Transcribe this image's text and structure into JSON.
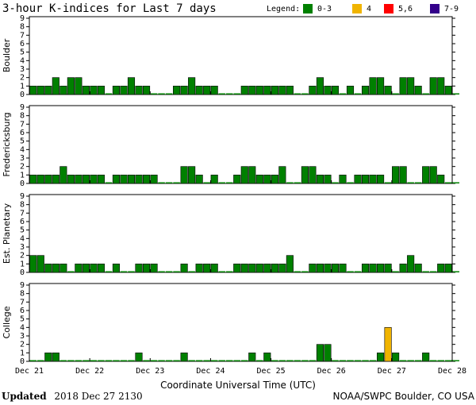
{
  "title": "3-hour K-indices for Last 7 days",
  "legend": {
    "label": "Legend:",
    "items": [
      {
        "label": "0-3",
        "color": "#008000"
      },
      {
        "label": "4",
        "color": "#f0b400"
      },
      {
        "label": "5,6",
        "color": "#ff0000"
      },
      {
        "label": "7-9",
        "color": "#33008a"
      }
    ]
  },
  "footer": {
    "updated_label": "Updated",
    "updated_value": "2018 Dec 27 2130",
    "source": "NOAA/SWPC Boulder, CO USA"
  },
  "chart_data": {
    "type": "bar",
    "xlabel": "Coordinate Universal Time (UTC)",
    "x_ticks": [
      "Dec 21",
      "Dec 22",
      "Dec 23",
      "Dec 24",
      "Dec 25",
      "Dec 26",
      "Dec 27",
      "Dec 28"
    ],
    "ylim": [
      0,
      9
    ],
    "y_ticks": [
      "0",
      "1",
      "2",
      "3",
      "4",
      "5",
      "6",
      "7",
      "8",
      "9"
    ],
    "panels": [
      {
        "name": "Boulder",
        "values": [
          1,
          1,
          1,
          2,
          1,
          2,
          2,
          1,
          1,
          1,
          0,
          1,
          1,
          2,
          1,
          1,
          0,
          0,
          0,
          1,
          1,
          2,
          1,
          1,
          1,
          0,
          0,
          0,
          1,
          1,
          1,
          1,
          1,
          1,
          1,
          0,
          0,
          1,
          2,
          1,
          1,
          0,
          1,
          0,
          1,
          2,
          2,
          1,
          0,
          2,
          2,
          1,
          0,
          2,
          2,
          1,
          0
        ]
      },
      {
        "name": "Fredericksburg",
        "values": [
          1,
          1,
          1,
          1,
          2,
          1,
          1,
          1,
          1,
          1,
          0,
          1,
          1,
          1,
          1,
          1,
          1,
          0,
          0,
          0,
          2,
          2,
          1,
          0,
          1,
          0,
          0,
          1,
          2,
          2,
          1,
          1,
          1,
          2,
          0,
          0,
          2,
          2,
          1,
          1,
          0,
          1,
          0,
          1,
          1,
          1,
          1,
          0,
          2,
          2,
          0,
          0,
          2,
          2,
          1,
          0,
          0
        ]
      },
      {
        "name": "Est. Planetary",
        "values": [
          2,
          2,
          1,
          1,
          1,
          0,
          1,
          1,
          1,
          1,
          0,
          1,
          0,
          0,
          1,
          1,
          1,
          0,
          0,
          0,
          1,
          0,
          1,
          1,
          1,
          0,
          0,
          1,
          1,
          1,
          1,
          1,
          1,
          1,
          2,
          0,
          0,
          1,
          1,
          1,
          1,
          1,
          0,
          0,
          1,
          1,
          1,
          1,
          0,
          1,
          2,
          1,
          0,
          0,
          1,
          1,
          0
        ]
      },
      {
        "name": "College",
        "values": [
          0,
          0,
          1,
          1,
          0,
          0,
          0,
          0,
          0,
          0,
          0,
          0,
          0,
          0,
          1,
          0,
          0,
          0,
          0,
          0,
          1,
          0,
          0,
          0,
          0,
          0,
          0,
          0,
          0,
          1,
          0,
          1,
          0,
          0,
          0,
          0,
          0,
          0,
          2,
          2,
          0,
          0,
          0,
          0,
          0,
          0,
          1,
          4,
          1,
          0,
          0,
          0,
          1,
          0,
          0,
          0,
          0
        ]
      }
    ]
  }
}
